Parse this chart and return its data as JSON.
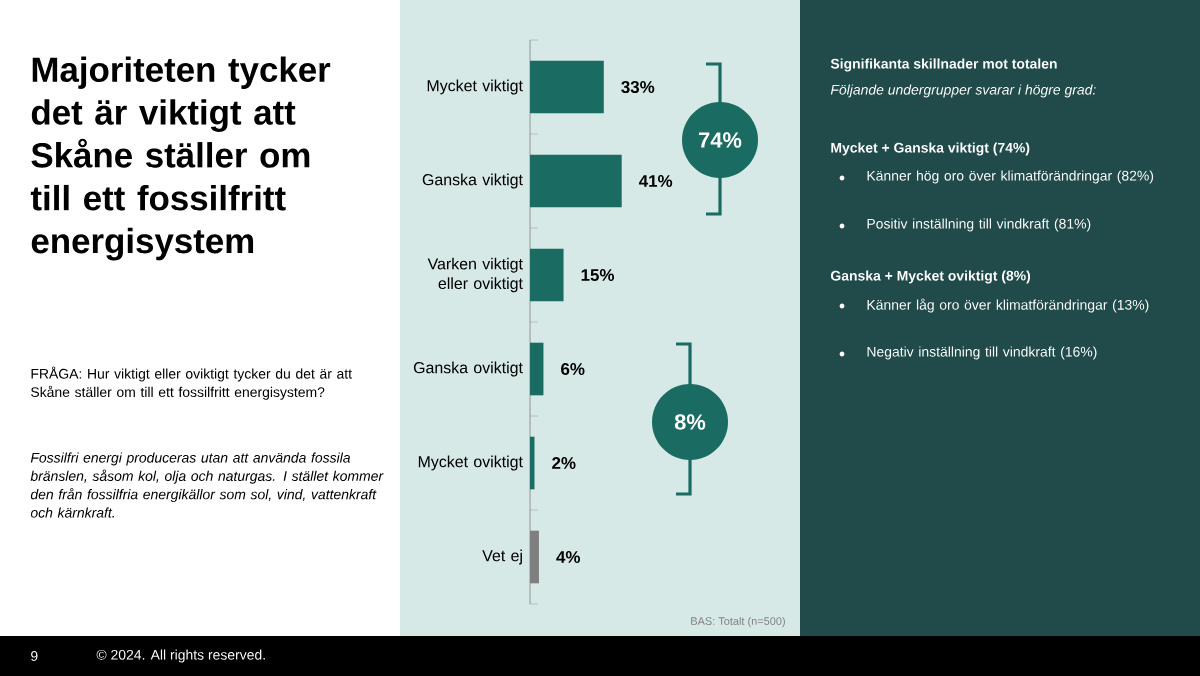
{
  "chart_data": {
    "type": "bar",
    "orientation": "horizontal",
    "title": "Majoriteten tycker det är viktigt att Skåne ställer om till ett fossilfritt energisystem",
    "subtitle": "FRÅGA: Hur viktigt eller oviktigt tycker du det är att Skåne ställer om till ett fossilfritt energisystem?",
    "categories": [
      "Mycket viktigt",
      "Ganska viktigt",
      "Varken viktigt eller oviktigt",
      "Ganska oviktigt",
      "Mycket oviktigt",
      "Vet ej"
    ],
    "values": [
      33,
      41,
      15,
      6,
      2,
      4
    ],
    "colors": [
      "#1a6b62",
      "#1a6b62",
      "#1a6b62",
      "#1a6b62",
      "#1a6b62",
      "#7f7f7f"
    ],
    "value_labels": [
      "33%",
      "41%",
      "15%",
      "6%",
      "2%",
      "4%"
    ],
    "annotations": [
      "74%",
      "8%",
      "Fossilfri energi produceras utan att använda fossila bränslen, såsom kol, olja och naturgas. I stället kommer den från fossilfria energikällor som sol, vind, vattenkraft och kärnkraft.",
      "BAS: Totalt (n=500)",
      "Signifikanta skillnader mot totalen",
      "Följande undergrupper svarar i högre grad:",
      "Mycket + Ganska viktigt (74%)",
      "Känner hög oro över klimatförändringar (82%)",
      "Positiv inställning till vindkraft (81%)",
      "Ganska + Mycket oviktigt (8%)",
      "Känner låg oro över klimatförändringar (13%)",
      "Negativ inställning till vindkraft (16%)",
      "9",
      "© 2024. All rights reserved."
    ]
  }
}
